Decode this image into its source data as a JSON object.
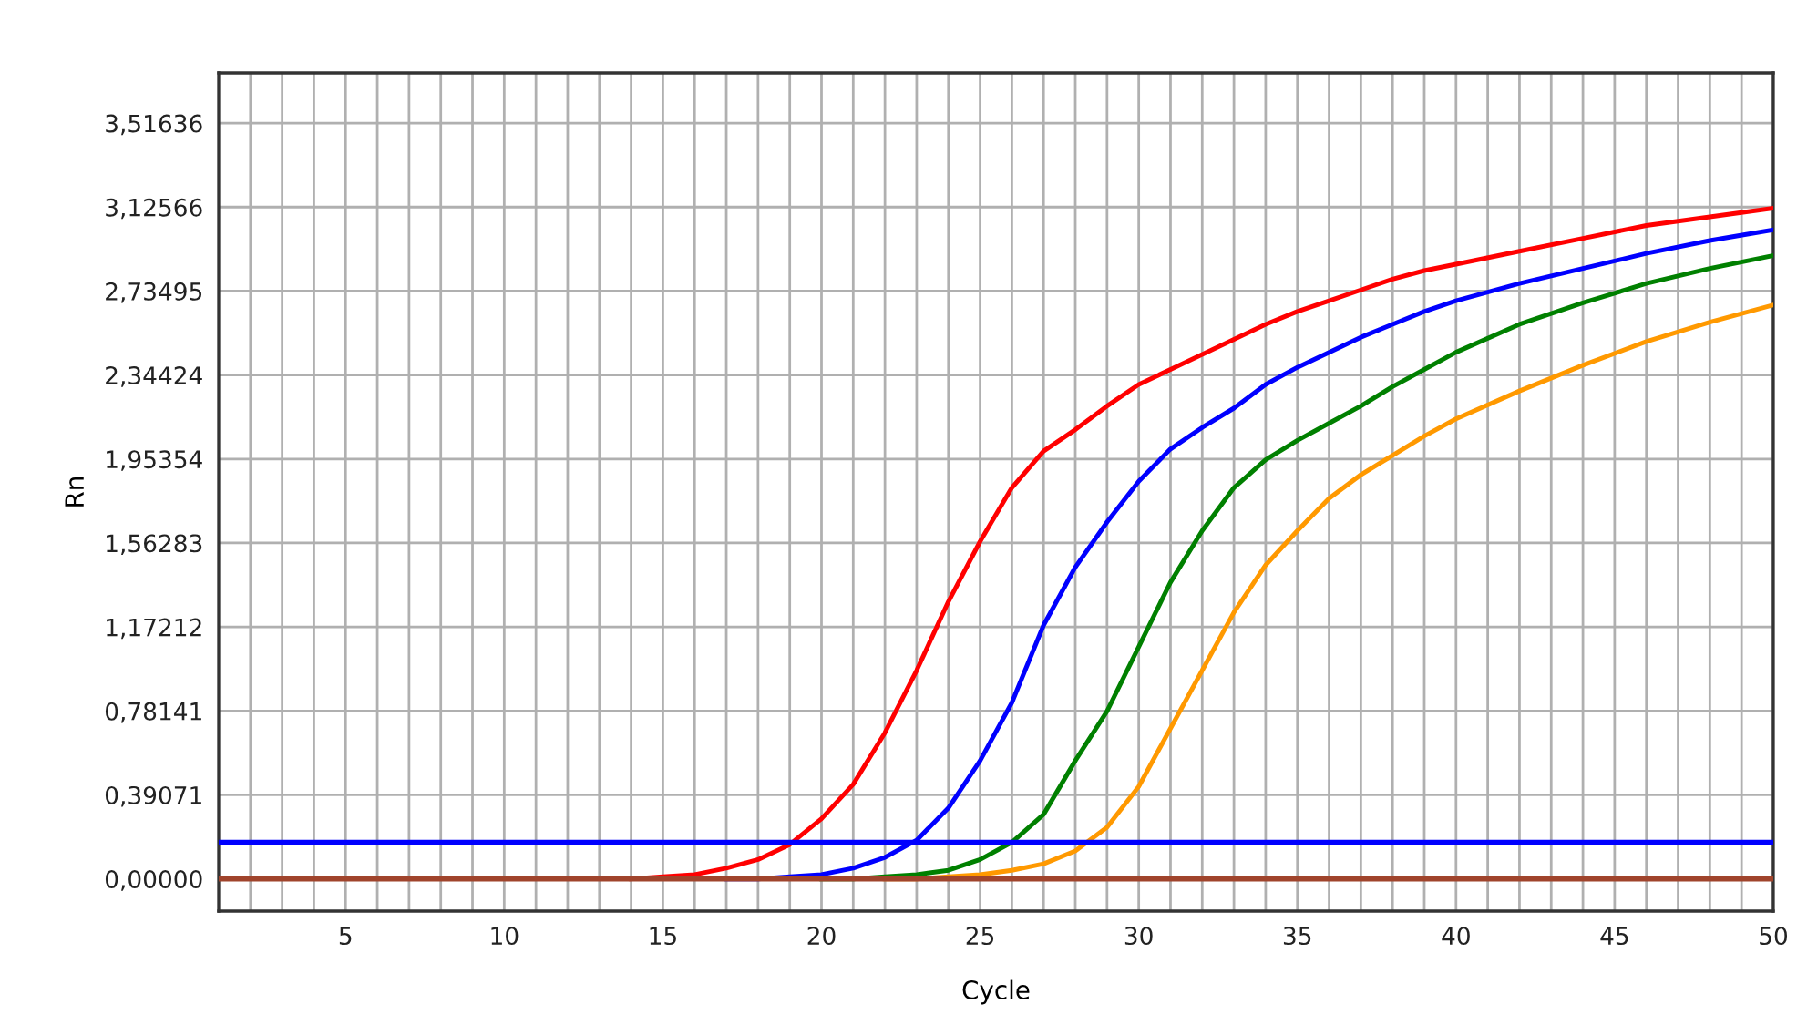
{
  "chart_data": {
    "type": "line",
    "xlabel": "Cycle",
    "ylabel": "Rn",
    "x": [
      14,
      15,
      16,
      17,
      18,
      19,
      20,
      21,
      22,
      23,
      24,
      25,
      26,
      27,
      28,
      29,
      30,
      31,
      32,
      33,
      34,
      35,
      36,
      37,
      38,
      39,
      40,
      42,
      44,
      46,
      48,
      50
    ],
    "series": [
      {
        "color": "#ff0000",
        "values": [
          0,
          0.01,
          0.02,
          0.05,
          0.09,
          0.16,
          0.28,
          0.44,
          0.68,
          0.97,
          1.29,
          1.57,
          1.82,
          1.99,
          2.09,
          2.2,
          2.3,
          2.37,
          2.44,
          2.51,
          2.58,
          2.64,
          2.69,
          2.74,
          2.79,
          2.83,
          2.86,
          2.92,
          2.98,
          3.04,
          3.08,
          3.12
        ]
      },
      {
        "color": "#0000ff",
        "values": [
          null,
          null,
          null,
          0,
          0,
          0.01,
          0.02,
          0.05,
          0.1,
          0.18,
          0.33,
          0.55,
          0.82,
          1.18,
          1.45,
          1.66,
          1.85,
          2.0,
          2.1,
          2.19,
          2.3,
          2.38,
          2.45,
          2.52,
          2.58,
          2.64,
          2.69,
          2.77,
          2.84,
          2.91,
          2.97,
          3.02
        ]
      },
      {
        "color": "#008000",
        "values": [
          null,
          null,
          null,
          null,
          null,
          null,
          0,
          0,
          0.01,
          0.02,
          0.04,
          0.09,
          0.17,
          0.3,
          0.55,
          0.78,
          1.08,
          1.38,
          1.62,
          1.82,
          1.95,
          2.04,
          2.12,
          2.2,
          2.29,
          2.37,
          2.45,
          2.58,
          2.68,
          2.77,
          2.84,
          2.9
        ]
      },
      {
        "color": "#ff9900",
        "values": [
          null,
          null,
          null,
          null,
          null,
          null,
          null,
          null,
          0,
          0,
          0.01,
          0.02,
          0.04,
          0.07,
          0.13,
          0.24,
          0.43,
          0.7,
          0.97,
          1.24,
          1.46,
          1.62,
          1.77,
          1.88,
          1.97,
          2.06,
          2.14,
          2.27,
          2.39,
          2.5,
          2.59,
          2.67
        ]
      }
    ],
    "ref_lines": [
      {
        "axis": "y",
        "value": 0,
        "color": "#a0442c"
      },
      {
        "axis": "y",
        "value": 0.17,
        "color": "#0000ff"
      }
    ],
    "xlim": [
      1,
      50
    ],
    "xticks": [
      {
        "value": 2,
        "label": null
      },
      {
        "value": 3,
        "label": null
      },
      {
        "value": 4,
        "label": null
      },
      5,
      {
        "value": 6,
        "label": null
      },
      {
        "value": 7,
        "label": null
      },
      {
        "value": 8,
        "label": null
      },
      {
        "value": 9,
        "label": null
      },
      10,
      {
        "value": 11,
        "label": null
      },
      {
        "value": 12,
        "label": null
      },
      {
        "value": 13,
        "label": null
      },
      {
        "value": 14,
        "label": null
      },
      15,
      {
        "value": 16,
        "label": null
      },
      {
        "value": 17,
        "label": null
      },
      {
        "value": 18,
        "label": null
      },
      {
        "value": 19,
        "label": null
      },
      20,
      {
        "value": 21,
        "label": null
      },
      {
        "value": 22,
        "label": null
      },
      {
        "value": 23,
        "label": null
      },
      {
        "value": 24,
        "label": null
      },
      25,
      {
        "value": 26,
        "label": null
      },
      {
        "value": 27,
        "label": null
      },
      {
        "value": 28,
        "label": null
      },
      {
        "value": 29,
        "label": null
      },
      30,
      {
        "value": 31,
        "label": null
      },
      {
        "value": 32,
        "label": null
      },
      {
        "value": 33,
        "label": null
      },
      {
        "value": 34,
        "label": null
      },
      35,
      {
        "value": 36,
        "label": null
      },
      {
        "value": 37,
        "label": null
      },
      {
        "value": 38,
        "label": null
      },
      {
        "value": 39,
        "label": null
      },
      40,
      {
        "value": 41,
        "label": null
      },
      {
        "value": 42,
        "label": null
      },
      {
        "value": 43,
        "label": null
      },
      {
        "value": 44,
        "label": null
      },
      45,
      {
        "value": 46,
        "label": null
      },
      {
        "value": 47,
        "label": null
      },
      {
        "value": 48,
        "label": null
      },
      {
        "value": 49,
        "label": null
      },
      50
    ],
    "ylim": [
      -0.15,
      3.75
    ],
    "yticks": [
      {
        "value": 0,
        "label": "0,00000"
      },
      {
        "value": 0.39071,
        "label": "0,39071"
      },
      {
        "value": 0.78141,
        "label": "0,78141"
      },
      {
        "value": 1.17212,
        "label": "1,17212"
      },
      {
        "value": 1.56283,
        "label": "1,56283"
      },
      {
        "value": 1.95354,
        "label": "1,95354"
      },
      {
        "value": 2.34424,
        "label": "2,34424"
      },
      {
        "value": 2.73495,
        "label": "2,73495"
      },
      {
        "value": 3.12566,
        "label": "3,12566"
      },
      {
        "value": 3.51636,
        "label": "3,51636"
      }
    ],
    "grid": true,
    "marker": "none",
    "line_style": "solid"
  }
}
